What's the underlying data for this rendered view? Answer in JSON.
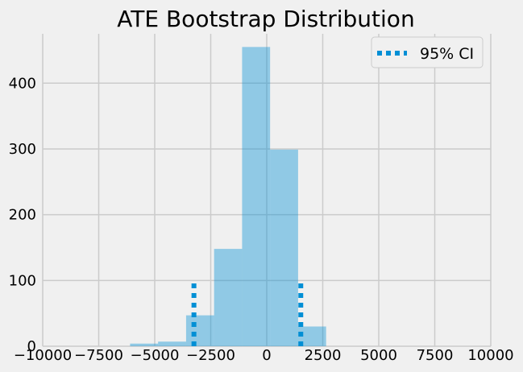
{
  "chart_data": {
    "type": "bar",
    "title": "ATE Bootstrap Distribution",
    "xlabel": "",
    "ylabel": "",
    "xlim": [
      -10000,
      10000
    ],
    "ylim": [
      0,
      475
    ],
    "x_ticks": [
      -10000,
      -7500,
      -5000,
      -2500,
      0,
      2500,
      5000,
      7500,
      10000
    ],
    "x_tick_labels": [
      "−10000",
      "−7500",
      "−5000",
      "−2500",
      "0",
      "2500",
      "5000",
      "7500",
      "10000"
    ],
    "y_ticks": [
      0,
      100,
      200,
      300,
      400
    ],
    "y_tick_labels": [
      "0",
      "100",
      "200",
      "300",
      "400"
    ],
    "grid": true,
    "bins": [
      {
        "x0": -6100,
        "x1": -4850,
        "count": 4
      },
      {
        "x0": -4850,
        "x1": -3600,
        "count": 7
      },
      {
        "x0": -3600,
        "x1": -2350,
        "count": 47
      },
      {
        "x0": -2350,
        "x1": -1100,
        "count": 148
      },
      {
        "x0": -1100,
        "x1": 150,
        "count": 455
      },
      {
        "x0": 150,
        "x1": 1400,
        "count": 299
      },
      {
        "x0": 1400,
        "x1": 2650,
        "count": 30
      }
    ],
    "bar_color": "#008fd5",
    "ci": {
      "lower": -3250,
      "upper": 1520,
      "height": 100,
      "label": "95% CI",
      "color": "#008fd5"
    },
    "legend": {
      "position": "top-right",
      "entries": [
        "95% CI"
      ]
    }
  }
}
